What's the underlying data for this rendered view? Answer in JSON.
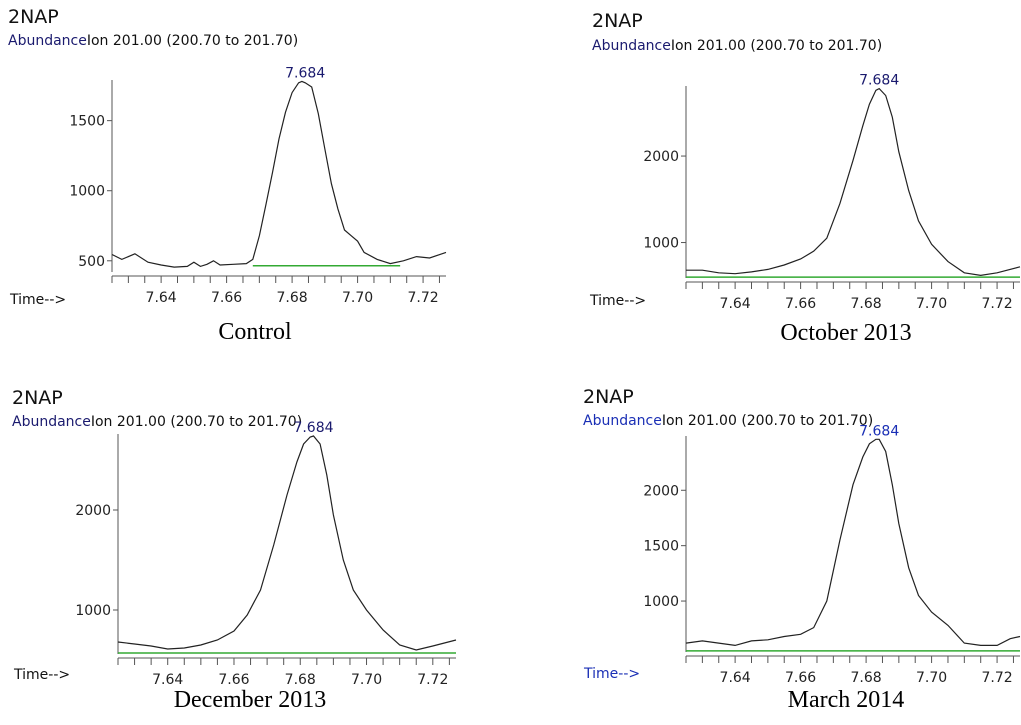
{
  "chart_data": [
    {
      "type": "line",
      "compound": "2NAP",
      "ylabel": "Abundance",
      "ion": "Ion 201.00 (200.70 to 201.70)",
      "xlabel": "Time-->",
      "caption": "Control",
      "peak_label": "7.684",
      "peak_label_color": "#1a1a6e",
      "xlim": [
        7.625,
        7.727
      ],
      "ylim": [
        420,
        1790
      ],
      "x_ticks": [
        7.64,
        7.66,
        7.68,
        7.7,
        7.72
      ],
      "x_tick_labels": [
        "7.64",
        "7.66",
        "7.68",
        "7.70",
        "7.72"
      ],
      "y_ticks": [
        500,
        1000,
        1500
      ],
      "y_tick_labels": [
        "500",
        "1000",
        "1500"
      ],
      "baseline": {
        "x": [
          7.668,
          7.713
        ],
        "y": 465,
        "color": "#33aa33"
      },
      "series": [
        {
          "x": [
            7.625,
            7.628,
            7.632,
            7.636,
            7.64,
            7.644,
            7.648,
            7.65,
            7.652,
            7.654,
            7.656,
            7.658,
            7.662,
            7.666,
            7.668,
            7.67,
            7.672,
            7.674,
            7.676,
            7.678,
            7.68,
            7.682,
            7.683,
            7.684,
            7.686,
            7.688,
            7.69,
            7.692,
            7.694,
            7.696,
            7.698,
            7.7,
            7.702,
            7.706,
            7.71,
            7.714,
            7.718,
            7.722,
            7.727
          ],
          "y": [
            545,
            510,
            550,
            490,
            470,
            455,
            460,
            490,
            460,
            475,
            500,
            470,
            475,
            480,
            510,
            680,
            900,
            1130,
            1370,
            1560,
            1700,
            1770,
            1780,
            1770,
            1740,
            1550,
            1300,
            1050,
            870,
            720,
            680,
            640,
            560,
            510,
            480,
            500,
            530,
            520,
            560
          ]
        }
      ]
    },
    {
      "type": "line",
      "compound": "2NAP",
      "ylabel": "Abundance",
      "ion": "Ion 201.00 (200.70 to 201.70)",
      "xlabel": "Time-->",
      "caption": "October 2013",
      "peak_label": "7.684",
      "peak_label_color": "#1a1a6e",
      "xlim": [
        7.625,
        7.727
      ],
      "ylim": [
        590,
        2810
      ],
      "x_ticks": [
        7.64,
        7.66,
        7.68,
        7.7,
        7.72
      ],
      "x_tick_labels": [
        "7.64",
        "7.66",
        "7.68",
        "7.70",
        "7.72"
      ],
      "y_ticks": [
        1000,
        2000
      ],
      "y_tick_labels": [
        "1000",
        "2000"
      ],
      "baseline": {
        "x": [
          7.625,
          7.727
        ],
        "y": 600,
        "color": "#33aa33"
      },
      "series": [
        {
          "x": [
            7.625,
            7.63,
            7.635,
            7.64,
            7.645,
            7.65,
            7.655,
            7.66,
            7.664,
            7.668,
            7.672,
            7.676,
            7.679,
            7.681,
            7.683,
            7.684,
            7.686,
            7.688,
            7.69,
            7.693,
            7.696,
            7.7,
            7.705,
            7.71,
            7.715,
            7.72,
            7.727
          ],
          "y": [
            680,
            680,
            650,
            640,
            660,
            690,
            740,
            810,
            900,
            1050,
            1450,
            1950,
            2350,
            2600,
            2760,
            2780,
            2700,
            2450,
            2050,
            1600,
            1250,
            980,
            780,
            650,
            620,
            650,
            720
          ]
        }
      ]
    },
    {
      "type": "line",
      "compound": "2NAP",
      "ylabel": "Abundance",
      "ion": "Ion 201.00 (200.70 to 201.70)",
      "xlabel": "Time-->",
      "caption": "December 2013",
      "peak_label": "7.684",
      "peak_label_color": "#1a1a6e",
      "xlim": [
        7.625,
        7.727
      ],
      "ylim": [
        560,
        2760
      ],
      "x_ticks": [
        7.64,
        7.66,
        7.68,
        7.7,
        7.72
      ],
      "x_tick_labels": [
        "7.64",
        "7.66",
        "7.68",
        "7.70",
        "7.72"
      ],
      "y_ticks": [
        1000,
        2000
      ],
      "y_tick_labels": [
        "1000",
        "2000"
      ],
      "baseline": {
        "x": [
          7.625,
          7.727
        ],
        "y": 570,
        "color": "#33aa33"
      },
      "series": [
        {
          "x": [
            7.625,
            7.63,
            7.635,
            7.64,
            7.645,
            7.65,
            7.655,
            7.66,
            7.664,
            7.668,
            7.672,
            7.676,
            7.679,
            7.681,
            7.683,
            7.684,
            7.686,
            7.688,
            7.69,
            7.693,
            7.696,
            7.7,
            7.705,
            7.71,
            7.715,
            7.72,
            7.727
          ],
          "y": [
            680,
            660,
            640,
            610,
            620,
            650,
            700,
            790,
            950,
            1200,
            1650,
            2150,
            2480,
            2660,
            2730,
            2740,
            2660,
            2350,
            1950,
            1500,
            1200,
            1000,
            800,
            650,
            600,
            640,
            700
          ]
        }
      ]
    },
    {
      "type": "line",
      "compound": "2NAP",
      "ylabel": "Abundance",
      "ion": "Ion 201.00 (200.70 to 201.70)",
      "xlabel": "Time-->",
      "caption": "March 2014",
      "peak_label": "7.684",
      "peak_label_color": "#1a2fb5",
      "xlim": [
        7.625,
        7.727
      ],
      "ylim": [
        540,
        2490
      ],
      "x_ticks": [
        7.64,
        7.66,
        7.68,
        7.7,
        7.72
      ],
      "x_tick_labels": [
        "7.64",
        "7.66",
        "7.68",
        "7.70",
        "7.72"
      ],
      "y_ticks": [
        1000,
        1500,
        2000
      ],
      "y_tick_labels": [
        "1000",
        "1500",
        "2000"
      ],
      "baseline": {
        "x": [
          7.625,
          7.727
        ],
        "y": 550,
        "color": "#33aa33"
      },
      "series": [
        {
          "x": [
            7.625,
            7.63,
            7.635,
            7.64,
            7.645,
            7.65,
            7.655,
            7.66,
            7.664,
            7.668,
            7.672,
            7.676,
            7.679,
            7.681,
            7.683,
            7.684,
            7.686,
            7.688,
            7.69,
            7.693,
            7.696,
            7.7,
            7.705,
            7.71,
            7.715,
            7.72,
            7.724,
            7.727
          ],
          "y": [
            620,
            640,
            620,
            600,
            640,
            650,
            680,
            700,
            760,
            1000,
            1550,
            2050,
            2300,
            2420,
            2460,
            2460,
            2350,
            2050,
            1700,
            1300,
            1050,
            900,
            780,
            620,
            600,
            600,
            660,
            680
          ]
        }
      ]
    }
  ]
}
